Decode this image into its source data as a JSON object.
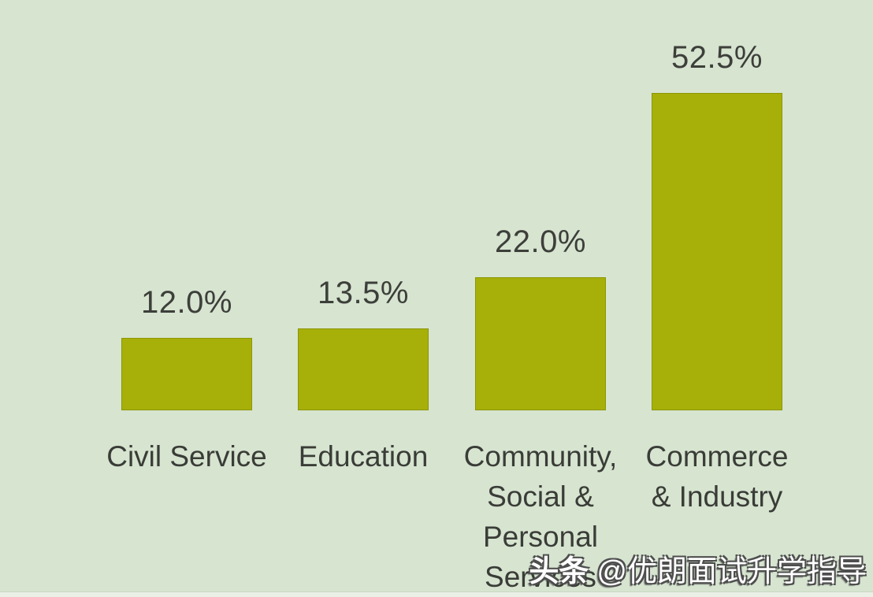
{
  "chart_data": {
    "type": "bar",
    "title": "",
    "xlabel": "",
    "ylabel": "",
    "categories": [
      "Civil Service",
      "Education",
      "Community, Social & Personal Services",
      "Commerce & Industry"
    ],
    "category_lines": [
      [
        "Civil Service"
      ],
      [
        "Education"
      ],
      [
        "Community,",
        "Social &",
        "Personal",
        "Services"
      ],
      [
        "Commerce",
        "& Industry"
      ]
    ],
    "values": [
      12.0,
      13.5,
      22.0,
      52.5
    ],
    "data_labels": [
      "12.0%",
      "13.5%",
      "22.0%",
      "52.5%"
    ],
    "unit": "%",
    "ylim": [
      0,
      55
    ],
    "grid": false,
    "legend": false,
    "axes_visible": false,
    "bar_color": "#a6b009",
    "background_color": "#d6e4d0",
    "text_color": "#3d3f3a"
  },
  "watermark": {
    "brand": "头条",
    "handle": "@优朗面试升学指导"
  }
}
